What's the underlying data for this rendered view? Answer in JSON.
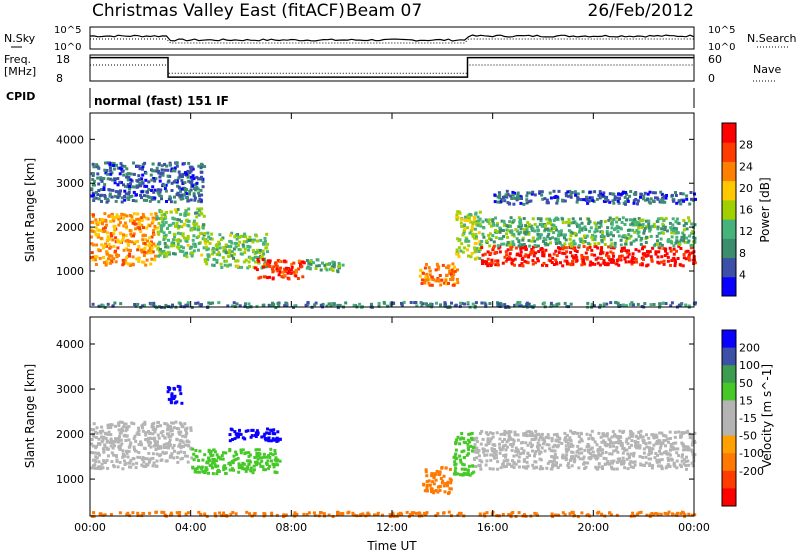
{
  "header": {
    "title": "Christmas Valley East (fitACF)",
    "beam": "Beam 07",
    "date": "26/Feb/2012",
    "mode": "normal (fast) 151 IF"
  },
  "labels": {
    "nsky": "N.Sky",
    "nsearch": "N.Search",
    "freq_top": "Freq.",
    "freq_unit": "[MHz]",
    "nave": "Nave",
    "cpid": "CPID",
    "exp_hi": "10^5",
    "exp_lo": "10^0"
  },
  "colors": {
    "power_scale": [
      "#0a00ff",
      "#3c50a8",
      "#3c8c6e",
      "#46b47a",
      "#a0d000",
      "#ffc800",
      "#ff8000",
      "#ff3c00",
      "#ff0000"
    ],
    "velocity_scale": [
      "#ff0000",
      "#ff3c00",
      "#ff7800",
      "#ffa000",
      "#b4b4b4",
      "#b4b4b4",
      "#46c828",
      "#3c9c50",
      "#3c50a8",
      "#0a00ff"
    ]
  },
  "chart_data": [
    {
      "type": "line",
      "name": "noise-panel",
      "ylabel_left": "N.Sky",
      "ylabel_right": "N.Search",
      "yticks_left": [
        "10^5",
        "10^0"
      ],
      "yticks_right": [
        "10^5",
        "10^0"
      ],
      "xlim": [
        0,
        24
      ]
    },
    {
      "type": "line",
      "name": "frequency-panel",
      "ylabel_left": "Freq. [MHz]",
      "ylabel_right": "Nave",
      "ylim_left": [
        8,
        18
      ],
      "yticks_left": [
        18,
        8
      ],
      "ylim_right": [
        0,
        60
      ],
      "yticks_right": [
        60,
        0
      ],
      "freq_segments": [
        {
          "x": [
            0,
            3.1
          ],
          "y": 17
        },
        {
          "x": [
            3.1,
            15.0
          ],
          "y": 9.5
        },
        {
          "x": [
            15.0,
            24.0
          ],
          "y": 17
        }
      ],
      "nave_segments": [
        {
          "x": [
            0,
            3.1
          ],
          "y": 37
        },
        {
          "x": [
            3.1,
            15.0
          ],
          "y": 18
        },
        {
          "x": [
            15.0,
            24.0
          ],
          "y": 37
        }
      ]
    },
    {
      "type": "heatmap",
      "name": "power-panel",
      "ylabel": "Slant Range [km]",
      "ylim": [
        180,
        4600
      ],
      "yticks": [
        1000,
        2000,
        3000,
        4000
      ],
      "xlim": [
        0,
        24
      ],
      "colorbar_label": "Power [dB]",
      "colorbar_ticks": [
        4,
        8,
        12,
        16,
        20,
        24,
        28
      ],
      "colorbar_range": [
        0,
        32
      ],
      "echo_bands": [
        {
          "t0": 0.0,
          "t1": 2.6,
          "r0": 1150,
          "r1": 2350,
          "value": 22
        },
        {
          "t0": 2.6,
          "t1": 4.5,
          "r0": 1350,
          "r1": 2450,
          "value": 14
        },
        {
          "t0": 4.5,
          "t1": 7.0,
          "r0": 1100,
          "r1": 1900,
          "value": 14
        },
        {
          "t0": 6.5,
          "t1": 8.5,
          "r0": 850,
          "r1": 1300,
          "value": 28
        },
        {
          "t0": 8.5,
          "t1": 10.0,
          "r0": 1000,
          "r1": 1300,
          "value": 12
        },
        {
          "t0": 13.0,
          "t1": 14.6,
          "r0": 700,
          "r1": 1200,
          "value": 24
        },
        {
          "t0": 14.5,
          "t1": 15.5,
          "r0": 1300,
          "r1": 2400,
          "value": 16
        },
        {
          "t0": 15.5,
          "t1": 24.0,
          "r0": 1150,
          "r1": 1600,
          "value": 30
        },
        {
          "t0": 15.5,
          "t1": 24.0,
          "r0": 1600,
          "r1": 2250,
          "value": 12
        },
        {
          "t0": 16.0,
          "t1": 24.0,
          "r0": 2550,
          "r1": 2850,
          "value": 6
        },
        {
          "t0": 0.0,
          "t1": 4.5,
          "r0": 2600,
          "r1": 3500,
          "value": 6
        },
        {
          "t0": 0.0,
          "t1": 24.0,
          "r0": 200,
          "r1": 320,
          "value": 8
        }
      ]
    },
    {
      "type": "heatmap",
      "name": "velocity-panel",
      "ylabel": "Slant Range [km]",
      "ylim": [
        180,
        4600
      ],
      "yticks": [
        1000,
        2000,
        3000,
        4000
      ],
      "xlim": [
        0,
        24
      ],
      "xticks": [
        "00:00",
        "04:00",
        "08:00",
        "12:00",
        "16:00",
        "20:00",
        "00:00"
      ],
      "xlabel": "Time UT",
      "colorbar_label": "Velocity [m s^-1]",
      "colorbar_ticks": [
        200,
        100,
        50,
        15,
        -15,
        -50,
        -100,
        -200
      ],
      "echo_bands": [
        {
          "t0": 0.0,
          "t1": 2.6,
          "r0": 1250,
          "r1": 2300,
          "value": 0
        },
        {
          "t0": 2.6,
          "t1": 4.0,
          "r0": 1400,
          "r1": 2300,
          "value": 0
        },
        {
          "t0": 3.0,
          "t1": 3.6,
          "r0": 2700,
          "r1": 3100,
          "value": 250
        },
        {
          "t0": 4.0,
          "t1": 7.5,
          "r0": 1150,
          "r1": 1700,
          "value": 35
        },
        {
          "t0": 5.5,
          "t1": 7.6,
          "r0": 1850,
          "r1": 2150,
          "value": 250
        },
        {
          "t0": 13.2,
          "t1": 14.3,
          "r0": 700,
          "r1": 1300,
          "value": -60
        },
        {
          "t0": 14.4,
          "t1": 15.2,
          "r0": 1100,
          "r1": 2050,
          "value": 35
        },
        {
          "t0": 15.2,
          "t1": 24.0,
          "r0": 1250,
          "r1": 2100,
          "value": 0
        },
        {
          "t0": 0.0,
          "t1": 24.0,
          "r0": 200,
          "r1": 300,
          "value": -60
        }
      ]
    }
  ]
}
